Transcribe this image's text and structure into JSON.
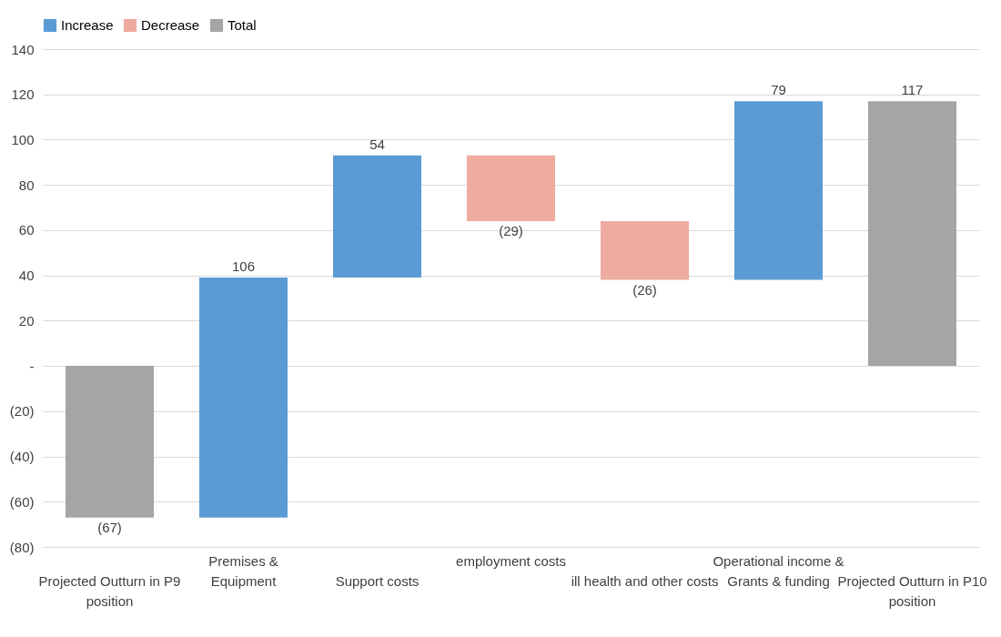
{
  "chart_data": {
    "type": "bar",
    "categories": [
      "Projected Outturn in P9\nposition",
      "Premises &\nEquipment",
      "Support costs",
      "employment costs",
      "ill health and other costs",
      "Operational income &\nGrants & funding",
      "Projected Outturn in P10\nposition"
    ],
    "series": [
      {
        "name": "Increase",
        "color": "#5b9bd5",
        "values": [
          null,
          106,
          54,
          null,
          null,
          79,
          null
        ],
        "base": [
          null,
          -67,
          39,
          null,
          null,
          38,
          null
        ]
      },
      {
        "name": "Decrease",
        "color": "#eeaba0",
        "values": [
          null,
          null,
          null,
          -29,
          -26,
          null,
          null
        ],
        "base": [
          null,
          null,
          null,
          93,
          64,
          null,
          null
        ]
      },
      {
        "name": "Total",
        "color": "#a5a5a5",
        "values": [
          -67,
          null,
          null,
          null,
          null,
          null,
          117
        ],
        "base": [
          0,
          null,
          null,
          null,
          null,
          null,
          0
        ]
      }
    ],
    "value_labels": [
      "(67)",
      "106",
      "54",
      "(29)",
      "(26)",
      "79",
      "117"
    ],
    "ylim": [
      -80,
      140
    ],
    "yticks": [
      {
        "value": -80,
        "label": "(80)"
      },
      {
        "value": -60,
        "label": "(60)"
      },
      {
        "value": -40,
        "label": "(40)"
      },
      {
        "value": -20,
        "label": "(20)"
      },
      {
        "value": 0,
        "label": "-"
      },
      20,
      40,
      60,
      80,
      100,
      120,
      140
    ],
    "grid": "y",
    "legend": "top"
  }
}
